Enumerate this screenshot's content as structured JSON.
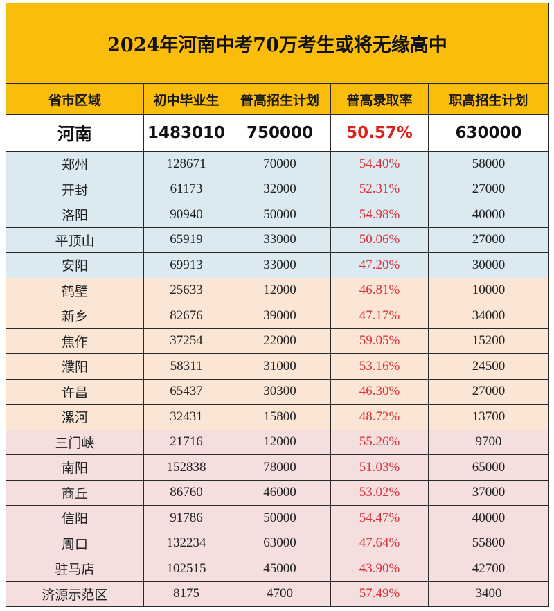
{
  "title": "2024年河南中考70万考生或将无缘高中",
  "headers": [
    "省市区域",
    "初中毕业生",
    "普高招生计划",
    "普高录取率",
    "职高招生计划"
  ],
  "total": {
    "region": "河南",
    "graduates": "1483010",
    "general_plan": "750000",
    "rate": "50.57%",
    "vocational_plan": "630000"
  },
  "rows": [
    {
      "region": "郑州",
      "graduates": "128671",
      "general_plan": "70000",
      "rate": "54.40%",
      "vocational_plan": "58000",
      "group": 1
    },
    {
      "region": "开封",
      "graduates": "61173",
      "general_plan": "32000",
      "rate": "52.31%",
      "vocational_plan": "27000",
      "group": 1
    },
    {
      "region": "洛阳",
      "graduates": "90940",
      "general_plan": "50000",
      "rate": "54.98%",
      "vocational_plan": "40000",
      "group": 1
    },
    {
      "region": "平顶山",
      "graduates": "65919",
      "general_plan": "33000",
      "rate": "50.06%",
      "vocational_plan": "27000",
      "group": 1
    },
    {
      "region": "安阳",
      "graduates": "69913",
      "general_plan": "33000",
      "rate": "47.20%",
      "vocational_plan": "30000",
      "group": 1
    },
    {
      "region": "鹤壁",
      "graduates": "25633",
      "general_plan": "12000",
      "rate": "46.81%",
      "vocational_plan": "10000",
      "group": 2
    },
    {
      "region": "新乡",
      "graduates": "82676",
      "general_plan": "39000",
      "rate": "47.17%",
      "vocational_plan": "34000",
      "group": 2
    },
    {
      "region": "焦作",
      "graduates": "37254",
      "general_plan": "22000",
      "rate": "59.05%",
      "vocational_plan": "15200",
      "group": 2
    },
    {
      "region": "濮阳",
      "graduates": "58311",
      "general_plan": "31000",
      "rate": "53.16%",
      "vocational_plan": "24500",
      "group": 2
    },
    {
      "region": "许昌",
      "graduates": "65437",
      "general_plan": "30300",
      "rate": "46.30%",
      "vocational_plan": "27000",
      "group": 2
    },
    {
      "region": "漯河",
      "graduates": "32431",
      "general_plan": "15800",
      "rate": "48.72%",
      "vocational_plan": "13700",
      "group": 2
    },
    {
      "region": "三门峡",
      "graduates": "21716",
      "general_plan": "12000",
      "rate": "55.26%",
      "vocational_plan": "9700",
      "group": 3
    },
    {
      "region": "南阳",
      "graduates": "152838",
      "general_plan": "78000",
      "rate": "51.03%",
      "vocational_plan": "65000",
      "group": 3
    },
    {
      "region": "商丘",
      "graduates": "86760",
      "general_plan": "46000",
      "rate": "53.02%",
      "vocational_plan": "37000",
      "group": 3
    },
    {
      "region": "信阳",
      "graduates": "91786",
      "general_plan": "50000",
      "rate": "54.47%",
      "vocational_plan": "40000",
      "group": 3
    },
    {
      "region": "周口",
      "graduates": "132234",
      "general_plan": "63000",
      "rate": "47.64%",
      "vocational_plan": "55800",
      "group": 3
    },
    {
      "region": "驻马店",
      "graduates": "102515",
      "general_plan": "45000",
      "rate": "43.90%",
      "vocational_plan": "42700",
      "group": 3
    },
    {
      "region": "济源示范区",
      "graduates": "8175",
      "general_plan": "4700",
      "rate": "57.49%",
      "vocational_plan": "3400",
      "group": 3
    }
  ],
  "colors": {
    "header_bg": "#fbbd0b",
    "group1_bg": "#dbeaf1",
    "group2_bg": "#fbe5d4",
    "group3_bg": "#f4dede",
    "rate_text": "#d8343a"
  }
}
